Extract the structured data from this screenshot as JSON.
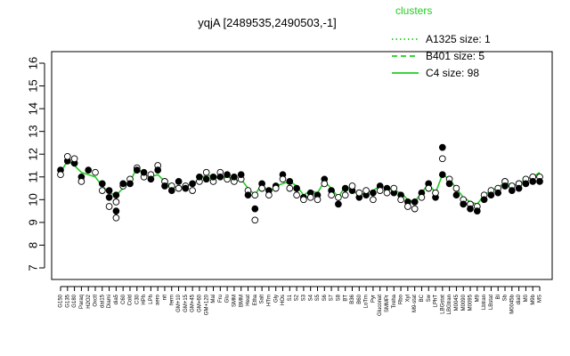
{
  "chart_data": {
    "type": "line",
    "title": "yqjA [2489535,2490503,-1]",
    "xlabel": "",
    "ylabel": "",
    "ylim": [
      7,
      16
    ],
    "yticks": [
      7,
      8,
      9,
      10,
      11,
      12,
      13,
      14,
      15,
      16
    ],
    "legend": {
      "title": "clusters",
      "placement": "top-right",
      "color": "#22cc22",
      "entries": [
        {
          "label": "A1325 size: 1",
          "style": "dotted"
        },
        {
          "label": "B401 size: 5",
          "style": "dashed"
        },
        {
          "label": "C4 size: 98",
          "style": "solid"
        }
      ]
    },
    "xtick_labels": [
      "G150",
      "G135",
      "G180",
      "Paraq",
      "H2O2",
      "Oxctl",
      "dat15",
      "Diami",
      "dia5",
      "C60",
      "Cold",
      "C30",
      "HPh",
      "LPh",
      "aero",
      "nit",
      "ferm",
      "GM+10",
      "GM+15",
      "GM+45",
      "GM+60",
      "GM+120",
      "Mal",
      "Fru",
      "Glu",
      "SMM",
      "BMM",
      "Heat",
      "Etha",
      "Salt",
      "HTm",
      "Gly",
      "HOs",
      "S1",
      "S2",
      "S3",
      "S4",
      "S5",
      "S6",
      "S7",
      "S8",
      "BT",
      "B36",
      "B60",
      "LoTm",
      "Pyr",
      "Gluconat",
      "SMMPr",
      "Treha",
      "Rbo",
      "Xyl",
      "M9-stat",
      "BC",
      "Sw",
      "LPhT",
      "LBGstat",
      "LBGtran",
      "M0045",
      "M0090",
      "M0095",
      "M9",
      "Lbtran",
      "LBstat",
      "Bl",
      "Sb",
      "M0045b",
      "dia0",
      "M0",
      "M9b",
      "MS"
    ],
    "series": [
      {
        "name": "C4",
        "line_values": [
          11.2,
          11.7,
          11.5,
          11.2,
          11.1,
          11.0,
          10.6,
          10.3,
          10.2,
          10.5,
          10.8,
          11.4,
          11.1,
          11.0,
          11.1,
          10.8,
          10.6,
          10.5,
          10.6,
          10.7,
          10.9,
          11.1,
          11.0,
          10.9,
          11.1,
          10.8,
          10.9,
          10.5,
          10.2,
          10.7,
          10.3,
          10.6,
          10.7,
          10.8,
          10.6,
          10.2,
          10.4,
          10.3,
          10.8,
          10.5,
          10.1,
          10.6,
          10.4,
          10.2,
          10.3,
          10.4,
          10.6,
          10.5,
          10.4,
          10.3,
          10.0,
          9.9,
          10.3,
          10.7,
          10.3,
          11.1,
          10.9,
          10.5,
          10.1,
          9.9,
          9.8,
          10.2,
          10.4,
          10.5,
          10.8,
          10.6,
          10.7,
          10.9,
          11.0,
          11.2
        ]
      }
    ],
    "points": [
      [
        0,
        11.3
      ],
      [
        0,
        11.1
      ],
      [
        1,
        11.7
      ],
      [
        1,
        11.9
      ],
      [
        2,
        11.6
      ],
      [
        2,
        11.8
      ],
      [
        3,
        11.0
      ],
      [
        3,
        10.8
      ],
      [
        4,
        11.3
      ],
      [
        5,
        11.2
      ],
      [
        6,
        10.7
      ],
      [
        6,
        10.4
      ],
      [
        7,
        10.4
      ],
      [
        7,
        9.7
      ],
      [
        7,
        10.1
      ],
      [
        8,
        9.9
      ],
      [
        8,
        9.5
      ],
      [
        8,
        9.2
      ],
      [
        8,
        10.2
      ],
      [
        9,
        10.6
      ],
      [
        9,
        10.7
      ],
      [
        10,
        10.9
      ],
      [
        10,
        10.7
      ],
      [
        11,
        11.4
      ],
      [
        11,
        11.3
      ],
      [
        12,
        11.0
      ],
      [
        12,
        11.2
      ],
      [
        13,
        11.1
      ],
      [
        13,
        10.9
      ],
      [
        14,
        11.5
      ],
      [
        14,
        11.3
      ],
      [
        15,
        10.8
      ],
      [
        15,
        10.6
      ],
      [
        16,
        10.6
      ],
      [
        16,
        10.4
      ],
      [
        17,
        10.5
      ],
      [
        17,
        10.8
      ],
      [
        18,
        10.6
      ],
      [
        18,
        10.5
      ],
      [
        19,
        10.4
      ],
      [
        19,
        10.7
      ],
      [
        20,
        10.8
      ],
      [
        20,
        11.0
      ],
      [
        21,
        11.2
      ],
      [
        21,
        10.9
      ],
      [
        22,
        10.8
      ],
      [
        22,
        11.0
      ],
      [
        23,
        11.2
      ],
      [
        23,
        11.0
      ],
      [
        24,
        10.9
      ],
      [
        24,
        11.1
      ],
      [
        25,
        10.8
      ],
      [
        25,
        11.0
      ],
      [
        26,
        10.9
      ],
      [
        26,
        11.1
      ],
      [
        27,
        10.4
      ],
      [
        27,
        10.2
      ],
      [
        28,
        10.2
      ],
      [
        28,
        9.6
      ],
      [
        28,
        9.1
      ],
      [
        29,
        10.7
      ],
      [
        29,
        10.5
      ],
      [
        30,
        10.4
      ],
      [
        30,
        10.2
      ],
      [
        31,
        10.6
      ],
      [
        31,
        10.5
      ],
      [
        32,
        11.1
      ],
      [
        32,
        10.9
      ],
      [
        33,
        10.8
      ],
      [
        33,
        10.5
      ],
      [
        34,
        10.5
      ],
      [
        34,
        10.2
      ],
      [
        35,
        10.1
      ],
      [
        35,
        10.0
      ],
      [
        36,
        10.3
      ],
      [
        36,
        10.1
      ],
      [
        37,
        10.2
      ],
      [
        37,
        10.0
      ],
      [
        38,
        10.9
      ],
      [
        38,
        10.7
      ],
      [
        39,
        10.4
      ],
      [
        39,
        10.2
      ],
      [
        40,
        9.8
      ],
      [
        40,
        10.1
      ],
      [
        41,
        10.5
      ],
      [
        41,
        10.2
      ],
      [
        42,
        10.4
      ],
      [
        42,
        10.6
      ],
      [
        43,
        10.1
      ],
      [
        43,
        10.3
      ],
      [
        44,
        10.2
      ],
      [
        44,
        10.4
      ],
      [
        45,
        10.3
      ],
      [
        45,
        10.0
      ],
      [
        46,
        10.6
      ],
      [
        46,
        10.4
      ],
      [
        47,
        10.5
      ],
      [
        47,
        10.3
      ],
      [
        48,
        10.3
      ],
      [
        48,
        10.5
      ],
      [
        49,
        10.2
      ],
      [
        49,
        10.0
      ],
      [
        50,
        9.9
      ],
      [
        50,
        9.7
      ],
      [
        51,
        9.9
      ],
      [
        51,
        9.6
      ],
      [
        52,
        10.3
      ],
      [
        52,
        10.1
      ],
      [
        53,
        10.7
      ],
      [
        53,
        10.5
      ],
      [
        54,
        10.1
      ],
      [
        54,
        10.3
      ],
      [
        55,
        12.3
      ],
      [
        55,
        11.8
      ],
      [
        55,
        11.1
      ],
      [
        56,
        10.9
      ],
      [
        56,
        10.7
      ],
      [
        57,
        10.5
      ],
      [
        57,
        10.2
      ],
      [
        58,
        10.0
      ],
      [
        58,
        9.8
      ],
      [
        59,
        9.8
      ],
      [
        59,
        9.6
      ],
      [
        60,
        9.7
      ],
      [
        60,
        9.5
      ],
      [
        61,
        10.2
      ],
      [
        61,
        10.0
      ],
      [
        62,
        10.4
      ],
      [
        62,
        10.2
      ],
      [
        63,
        10.5
      ],
      [
        63,
        10.3
      ],
      [
        64,
        10.8
      ],
      [
        64,
        10.6
      ],
      [
        65,
        10.6
      ],
      [
        65,
        10.4
      ],
      [
        66,
        10.7
      ],
      [
        66,
        10.5
      ],
      [
        67,
        10.9
      ],
      [
        67,
        10.7
      ],
      [
        68,
        11.0
      ],
      [
        68,
        10.8
      ],
      [
        69,
        11.0
      ],
      [
        69,
        10.8
      ]
    ]
  }
}
